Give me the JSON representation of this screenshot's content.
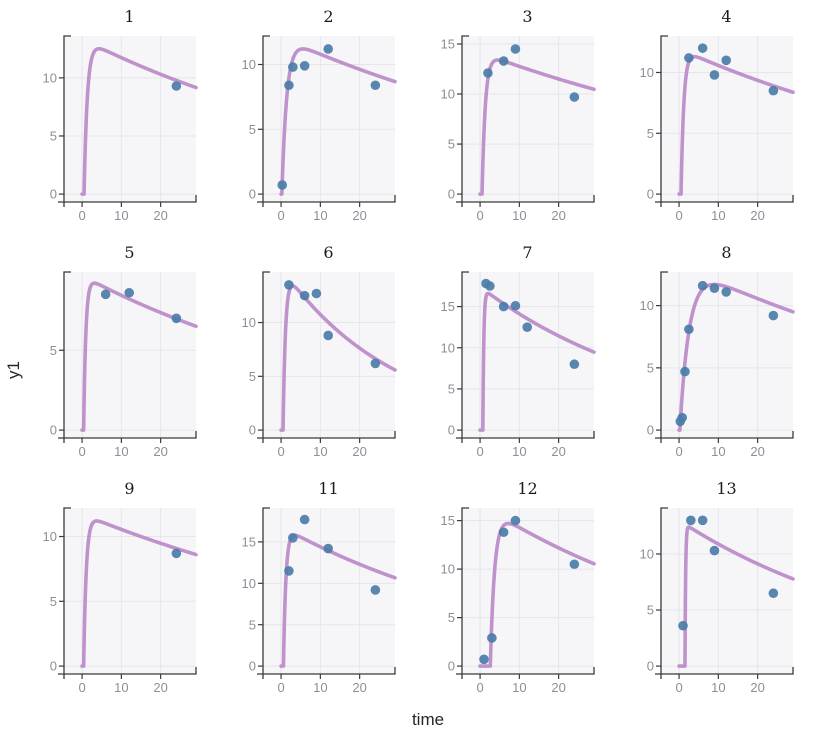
{
  "chart_data": {
    "type": "line+scatter",
    "description": "Faceted time-course fit plot: purple model-fit curve with blue observed data points, one panel per subject",
    "xlabel": "time",
    "ylabel": "y1",
    "x_axis": {
      "ticks": [
        0,
        10,
        20
      ],
      "lim": [
        -4.6,
        29
      ]
    },
    "legend": "none",
    "grid": "on",
    "facets": [
      {
        "label": "1",
        "yticks": [
          0,
          5,
          10
        ],
        "ylim_top": 13.6,
        "curve": {
          "tlag": 0.5,
          "ka": 1.2,
          "ke": 0.013,
          "ymax": 12.5
        },
        "points": [
          [
            24,
            9.3
          ]
        ]
      },
      {
        "label": "2",
        "yticks": [
          0,
          5,
          10
        ],
        "ylim_top": 12.2,
        "curve": {
          "tlag": 0.2,
          "ka": 0.8,
          "ke": 0.0115,
          "ymax": 11.2
        },
        "points": [
          [
            0.3,
            0.7
          ],
          [
            2,
            8.4
          ],
          [
            3,
            9.8
          ],
          [
            6,
            9.9
          ],
          [
            12,
            11.2
          ],
          [
            24,
            8.4
          ]
        ]
      },
      {
        "label": "3",
        "yticks": [
          0,
          5,
          10,
          15
        ],
        "ylim_top": 15.8,
        "curve": {
          "tlag": 0.5,
          "ka": 1.2,
          "ke": 0.0104,
          "ymax": 13.4
        },
        "points": [
          [
            2,
            12.1
          ],
          [
            6,
            13.3
          ],
          [
            9,
            14.5
          ],
          [
            24,
            9.7
          ]
        ]
      },
      {
        "label": "4",
        "yticks": [
          0,
          5,
          10
        ],
        "ylim_top": 13.0,
        "curve": {
          "tlag": 0.5,
          "ka": 1.4,
          "ke": 0.0123,
          "ymax": 11.3
        },
        "points": [
          [
            2.5,
            11.2
          ],
          [
            6,
            12.0
          ],
          [
            9,
            9.8
          ],
          [
            12,
            11.0
          ],
          [
            24,
            8.5
          ]
        ]
      },
      {
        "label": "5",
        "yticks": [
          0,
          5
        ],
        "ylim_top": 9.9,
        "curve": {
          "tlag": 0.4,
          "ka": 1.8,
          "ke": 0.0137,
          "ymax": 9.2
        },
        "points": [
          [
            6,
            8.5
          ],
          [
            12,
            8.6
          ],
          [
            24,
            7.0
          ]
        ]
      },
      {
        "label": "6",
        "yticks": [
          0,
          5,
          10
        ],
        "ylim_top": 14.7,
        "curve": {
          "tlag": 0.5,
          "ka": 1.6,
          "ke": 0.0344,
          "ymax": 13.4
        },
        "points": [
          [
            2,
            13.5
          ],
          [
            6,
            12.5
          ],
          [
            9,
            12.7
          ],
          [
            12,
            8.8
          ],
          [
            24,
            6.2
          ]
        ]
      },
      {
        "label": "7",
        "yticks": [
          0,
          5,
          10,
          15
        ],
        "ylim_top": 19.2,
        "curve": {
          "tlag": 0.7,
          "ka": 4.0,
          "ke": 0.021,
          "ymax": 16.6
        },
        "points": [
          [
            1.5,
            17.8
          ],
          [
            2.5,
            17.5
          ],
          [
            6,
            15.0
          ],
          [
            9,
            15.1
          ],
          [
            12,
            12.5
          ],
          [
            24,
            8.0
          ]
        ]
      },
      {
        "label": "8",
        "yticks": [
          0,
          5,
          10
        ],
        "ylim_top": 12.7,
        "curve": {
          "tlag": 0.2,
          "ka": 0.42,
          "ke": 0.0118,
          "ymax": 11.7
        },
        "points": [
          [
            0.3,
            0.7
          ],
          [
            0.8,
            1.0
          ],
          [
            1.5,
            4.7
          ],
          [
            2.5,
            8.1
          ],
          [
            6,
            11.6
          ],
          [
            9,
            11.4
          ],
          [
            12,
            11.1
          ],
          [
            24,
            9.2
          ]
        ]
      },
      {
        "label": "9",
        "yticks": [
          0,
          5,
          10
        ],
        "ylim_top": 12.2,
        "curve": {
          "tlag": 0.4,
          "ka": 1.5,
          "ke": 0.0107,
          "ymax": 11.2
        },
        "points": [
          [
            24,
            8.7
          ]
        ]
      },
      {
        "label": "11",
        "yticks": [
          0,
          5,
          10,
          15
        ],
        "ylim_top": 19.1,
        "curve": {
          "tlag": 0.6,
          "ka": 1.6,
          "ke": 0.0158,
          "ymax": 15.8
        },
        "points": [
          [
            2,
            11.5
          ],
          [
            3,
            15.5
          ],
          [
            6,
            17.7
          ],
          [
            12,
            14.2
          ],
          [
            24,
            9.2
          ]
        ]
      },
      {
        "label": "12",
        "yticks": [
          0,
          5,
          10,
          15
        ],
        "ylim_top": 16.3,
        "curve": {
          "tlag": 2.6,
          "ka": 0.9,
          "ke": 0.016,
          "ymax": 14.7
        },
        "points": [
          [
            1,
            0.7
          ],
          [
            3,
            2.9
          ],
          [
            6,
            13.8
          ],
          [
            9,
            15.0
          ],
          [
            24,
            10.5
          ]
        ]
      },
      {
        "label": "13",
        "yticks": [
          0,
          5,
          10
        ],
        "ylim_top": 14.1,
        "curve": {
          "tlag": 1.5,
          "ka": 6.0,
          "ke": 0.0177,
          "ymax": 12.4
        },
        "points": [
          [
            1,
            3.6
          ],
          [
            3,
            13.0
          ],
          [
            6,
            13.0
          ],
          [
            9,
            10.3
          ],
          [
            24,
            6.5
          ]
        ]
      }
    ]
  },
  "style": {
    "curve_color": "#bd8cc9",
    "point_color": "#4b7ca8",
    "panel_bg": "#f6f6f9",
    "gridline_color": "#e5e5eb",
    "spine_color": "#3a3a3a",
    "tick_label_color": "#8a909a",
    "title_color": "#1b1b1b",
    "axis_label_color": "#262626"
  }
}
